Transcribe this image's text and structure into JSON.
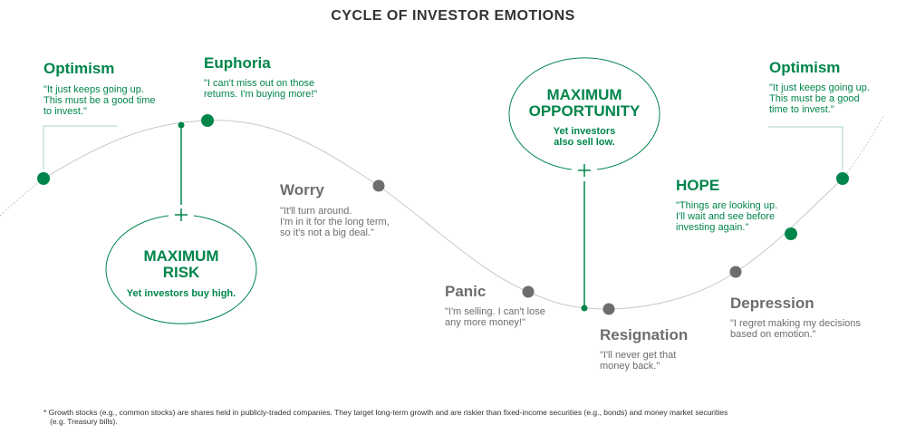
{
  "title": "CYCLE OF INVESTOR EMOTIONS",
  "colors": {
    "green": "#00854a",
    "gray": "#6d6d6d",
    "curve": "#c8c8c8"
  },
  "stages": [
    {
      "name": "Optimism",
      "quote": "\"It just keeps going up.\nThis must be a good time\nto invest.\"",
      "tone": "green"
    },
    {
      "name": "Euphoria",
      "quote": "\"I can't miss out on those\nreturns. I'm buying more!\"",
      "tone": "green"
    },
    {
      "name": "Worry",
      "quote": "\"It'll turn around.\nI'm in it for the long term,\nso it's not a big deal.\"",
      "tone": "gray"
    },
    {
      "name": "Panic",
      "quote": "\"I'm selling. I can't lose\nany more money!\"",
      "tone": "gray"
    },
    {
      "name": "Resignation",
      "quote": "\"I'll never get that\nmoney back.\"",
      "tone": "gray"
    },
    {
      "name": "Depression",
      "quote": "\"I regret making my decisions\nbased on emotion.\"",
      "tone": "gray"
    },
    {
      "name": "HOPE",
      "quote": "\"Things are looking up.\nI'll wait and see before\ninvesting again.\"",
      "tone": "green"
    },
    {
      "name": "Optimism",
      "quote": "\"It just keeps going up.\nThis must be a good\ntime to invest.\"",
      "tone": "green"
    }
  ],
  "max_risk": {
    "title": "MAXIMUM\nRISK",
    "subtitle": "Yet investors buy high."
  },
  "max_opportunity": {
    "title": "MAXIMUM\nOPPORTUNITY",
    "subtitle": "Yet investors\nalso sell low."
  },
  "footnote": "* Growth stocks (e.g., common stocks) are shares held in publicly-traded companies. They target long-term growth and are riskier than fixed-income securities (e.g., bonds) and money market securities\n   (e.g. Treasury bills)."
}
